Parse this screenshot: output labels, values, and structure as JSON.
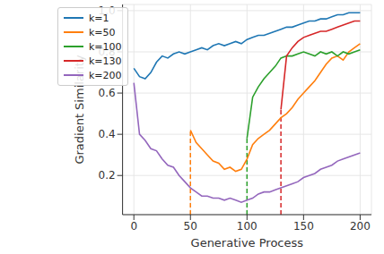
{
  "chart_data": {
    "type": "line",
    "x_label": "Generative Process",
    "y_label": "Gradient Similarity",
    "x": [
      0,
      5,
      10,
      15,
      20,
      25,
      30,
      35,
      40,
      45,
      50,
      55,
      60,
      65,
      70,
      75,
      80,
      85,
      90,
      95,
      100,
      105,
      110,
      115,
      120,
      125,
      130,
      135,
      140,
      145,
      150,
      155,
      160,
      165,
      170,
      175,
      180,
      185,
      190,
      195,
      200
    ],
    "xlim": [
      -10,
      210
    ],
    "xticks": [
      0,
      50,
      100,
      150,
      200
    ],
    "ylim": [
      0.01,
      1.03
    ],
    "yticks": [
      0.2,
      0.4,
      0.6,
      0.8,
      {
        "value": 1,
        "label": "1.0"
      }
    ],
    "grid": true,
    "legend": "upper left",
    "series": [
      {
        "name": "k=1",
        "color": "#1f77b4",
        "values": [
          0.72,
          0.68,
          0.67,
          0.7,
          0.75,
          0.78,
          0.77,
          0.79,
          0.8,
          0.79,
          0.8,
          0.81,
          0.82,
          0.81,
          0.83,
          0.84,
          0.83,
          0.84,
          0.85,
          0.84,
          0.86,
          0.87,
          0.88,
          0.88,
          0.89,
          0.9,
          0.91,
          0.92,
          0.92,
          0.93,
          0.94,
          0.95,
          0.95,
          0.96,
          0.96,
          0.97,
          0.98,
          0.98,
          0.99,
          0.99,
          0.99
        ]
      },
      {
        "name": "k=50",
        "color": "#ff7f0e",
        "values": [
          null,
          null,
          null,
          null,
          null,
          null,
          null,
          null,
          null,
          null,
          0.42,
          0.36,
          0.33,
          0.3,
          0.27,
          0.26,
          0.23,
          0.24,
          0.22,
          0.23,
          0.28,
          0.35,
          0.38,
          0.4,
          0.42,
          0.45,
          0.48,
          0.5,
          0.53,
          0.57,
          0.6,
          0.63,
          0.66,
          0.7,
          0.74,
          0.77,
          0.78,
          0.76,
          0.8,
          0.82,
          0.84
        ]
      },
      {
        "name": "k=100",
        "color": "#2ca02c",
        "values": [
          null,
          null,
          null,
          null,
          null,
          null,
          null,
          null,
          null,
          null,
          null,
          null,
          null,
          null,
          null,
          null,
          null,
          null,
          null,
          null,
          0.38,
          0.58,
          0.63,
          0.67,
          0.7,
          0.73,
          0.77,
          0.78,
          0.78,
          0.79,
          0.8,
          0.79,
          0.78,
          0.8,
          0.79,
          0.8,
          0.78,
          0.8,
          0.79,
          0.8,
          0.81
        ]
      },
      {
        "name": "k=130",
        "color": "#d62728",
        "values": [
          null,
          null,
          null,
          null,
          null,
          null,
          null,
          null,
          null,
          null,
          null,
          null,
          null,
          null,
          null,
          null,
          null,
          null,
          null,
          null,
          null,
          null,
          null,
          null,
          null,
          null,
          0.52,
          0.78,
          0.82,
          0.85,
          0.87,
          0.88,
          0.89,
          0.9,
          0.9,
          0.91,
          0.92,
          0.93,
          0.94,
          0.95,
          0.95
        ]
      },
      {
        "name": "k=200",
        "color": "#9467bd",
        "values": [
          0.65,
          0.4,
          0.37,
          0.33,
          0.32,
          0.28,
          0.25,
          0.24,
          0.2,
          0.17,
          0.14,
          0.12,
          0.1,
          0.1,
          0.09,
          0.09,
          0.08,
          0.09,
          0.08,
          0.07,
          0.08,
          0.09,
          0.11,
          0.12,
          0.12,
          0.13,
          0.14,
          0.15,
          0.16,
          0.17,
          0.19,
          0.2,
          0.21,
          0.23,
          0.24,
          0.25,
          0.27,
          0.28,
          0.29,
          0.3,
          0.31
        ]
      }
    ]
  }
}
